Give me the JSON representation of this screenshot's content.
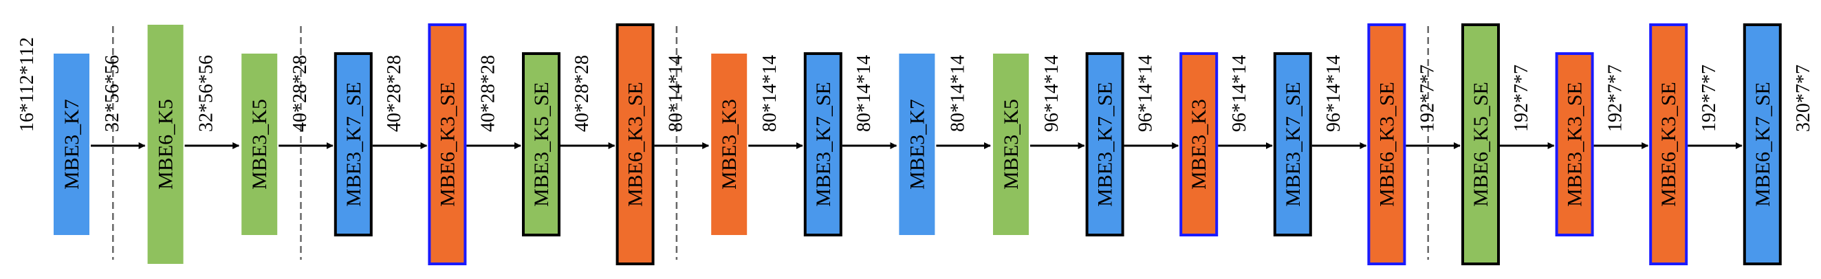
{
  "diagram": {
    "input_dim": "16*112*112",
    "colors": {
      "blue": "#4a98ec",
      "green": "#8fc15e",
      "orange": "#ef6d2c",
      "border_black": "#000000",
      "border_blue": "#1a1aff"
    },
    "blocks": [
      {
        "label": "MBE3_K7",
        "color": "blue",
        "border": "none",
        "size": "small",
        "out_dim": "32*56*56"
      },
      {
        "label": "MBE6_K5",
        "color": "green",
        "border": "none",
        "size": "large",
        "out_dim": "32*56*56"
      },
      {
        "label": "MBE3_K5",
        "color": "green",
        "border": "none",
        "size": "small",
        "out_dim": "40*28*28"
      },
      {
        "label": "MBE3_K7_SE",
        "color": "blue",
        "border": "black",
        "size": "small",
        "out_dim": "40*28*28"
      },
      {
        "label": "MBE6_K3_SE",
        "color": "orange",
        "border": "blue",
        "size": "large",
        "out_dim": "40*28*28"
      },
      {
        "label": "MBE3_K5_SE",
        "color": "green",
        "border": "black",
        "size": "small",
        "out_dim": "40*28*28"
      },
      {
        "label": "MBE6_K3_SE",
        "color": "orange",
        "border": "black",
        "size": "large",
        "out_dim": "80*14*14"
      },
      {
        "label": "MBE3_K3",
        "color": "orange",
        "border": "none",
        "size": "small",
        "out_dim": "80*14*14"
      },
      {
        "label": "MBE3_K7_SE",
        "color": "blue",
        "border": "black",
        "size": "small",
        "out_dim": "80*14*14"
      },
      {
        "label": "MBE3_K7",
        "color": "blue",
        "border": "none",
        "size": "small",
        "out_dim": "80*14*14"
      },
      {
        "label": "MBE3_K5",
        "color": "green",
        "border": "none",
        "size": "small",
        "out_dim": "96*14*14"
      },
      {
        "label": "MBE3_K7_SE",
        "color": "blue",
        "border": "black",
        "size": "small",
        "out_dim": "96*14*14"
      },
      {
        "label": "MBE3_K3",
        "color": "orange",
        "border": "blue",
        "size": "small",
        "out_dim": "96*14*14"
      },
      {
        "label": "MBE3_K7_SE",
        "color": "blue",
        "border": "black",
        "size": "small",
        "out_dim": "96*14*14"
      },
      {
        "label": "MBE6_K3_SE",
        "color": "orange",
        "border": "blue",
        "size": "large",
        "out_dim": "192*7*7"
      },
      {
        "label": "MBE6_K5_SE",
        "color": "green",
        "border": "black",
        "size": "large",
        "out_dim": "192*7*7"
      },
      {
        "label": "MBE3_K3_SE",
        "color": "orange",
        "border": "blue",
        "size": "small",
        "out_dim": "192*7*7"
      },
      {
        "label": "MBE6_K3_SE",
        "color": "orange",
        "border": "blue",
        "size": "large",
        "out_dim": "192*7*7"
      },
      {
        "label": "MBE6_K7_SE",
        "color": "blue",
        "border": "black",
        "size": "large",
        "out_dim": "320*7*7"
      }
    ],
    "stage_dividers_after_block": [
      0,
      2,
      6,
      14
    ]
  }
}
